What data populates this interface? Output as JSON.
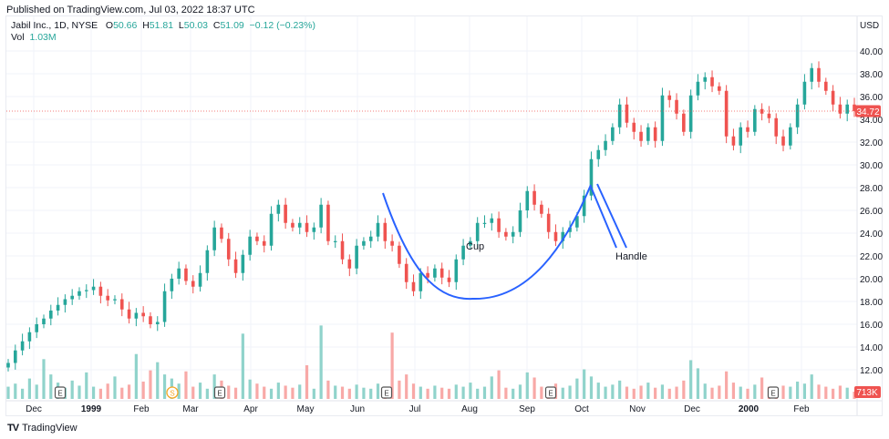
{
  "header": {
    "published": "Published on TradingView.com, Jul 03, 2022 18:37 UTC"
  },
  "legend": {
    "symbol": "Jabil Inc., 1D, NYSE",
    "o_label": "O",
    "o": "50.66",
    "h_label": "H",
    "h": "51.81",
    "l_label": "L",
    "l": "50.03",
    "c_label": "C",
    "c": "51.09",
    "change": "−0.12 (−0.23%)",
    "vol_label": "Vol",
    "vol": "1.03M"
  },
  "footer": {
    "brand": "TradingView"
  },
  "colors": {
    "up": "#26a69a",
    "down": "#ef5350",
    "cup_line": "#2962ff"
  },
  "chart_data": {
    "type": "candlestick",
    "currency": "USD",
    "ylim": [
      10.5,
      41.5
    ],
    "y_ticks": [
      "40.00",
      "38.00",
      "36.00",
      "34.00",
      "32.00",
      "30.00",
      "28.00",
      "26.00",
      "24.00",
      "22.00",
      "20.00",
      "18.00",
      "16.00",
      "14.00",
      "12.00"
    ],
    "x_ticks": [
      "Dec",
      "1999",
      "Feb",
      "Mar",
      "Apr",
      "May",
      "Jun",
      "Jul",
      "Aug",
      "Sep",
      "Oct",
      "Nov",
      "Dec",
      "2000",
      "Feb"
    ],
    "last_price": "34.72",
    "last_volume": "713K",
    "closes": [
      12.6,
      13.7,
      14.5,
      15.3,
      16.0,
      16.5,
      17.2,
      17.7,
      18.2,
      18.5,
      18.9,
      19.0,
      19.3,
      18.5,
      18.1,
      18.2,
      17.3,
      16.5,
      17.0,
      16.7,
      16.0,
      16.2,
      18.9,
      20.0,
      20.9,
      19.8,
      19.3,
      20.5,
      22.5,
      24.5,
      23.5,
      21.7,
      20.5,
      22.1,
      23.7,
      23.3,
      22.9,
      25.7,
      26.5,
      24.9,
      24.5,
      24.9,
      24.1,
      24.5,
      26.5,
      23.3,
      23.3,
      21.7,
      20.9,
      22.9,
      23.3,
      23.7,
      24.9,
      23.3,
      22.9,
      21.3,
      19.7,
      18.9,
      20.5,
      20.1,
      20.9,
      20.1,
      19.7,
      21.7,
      22.9,
      23.3,
      24.9,
      24.9,
      25.3,
      24.1,
      23.7,
      24.1,
      26.0,
      27.7,
      26.5,
      25.7,
      24.1,
      23.3,
      24.1,
      24.5,
      25.5,
      27.3,
      30.5,
      31.3,
      32.1,
      33.3,
      35.3,
      33.7,
      32.9,
      32.1,
      33.3,
      32.1,
      36.1,
      35.7,
      34.5,
      32.9,
      36.1,
      37.3,
      37.7,
      36.9,
      36.5,
      32.5,
      31.7,
      33.3,
      32.9,
      34.9,
      34.5,
      34.1,
      32.5,
      31.7,
      33.3,
      35.3,
      37.3,
      38.5,
      37.3,
      36.5,
      35.3,
      34.5,
      35.3,
      34.72
    ],
    "volumes_millions": [
      1.2,
      1.5,
      1.0,
      2.0,
      1.4,
      3.9,
      2.4,
      1.6,
      1.1,
      1.8,
      1.3,
      2.6,
      1.2,
      1.0,
      1.5,
      2.2,
      1.1,
      1.4,
      4.4,
      1.7,
      2.8,
      3.6,
      2.4,
      2.0,
      1.5,
      2.7,
      1.2,
      1.6,
      1.0,
      2.4,
      1.8,
      1.3,
      1.1,
      6.4,
      1.9,
      1.5,
      1.2,
      1.0,
      1.6,
      1.3,
      1.1,
      1.4,
      3.3,
      1.0,
      7.2,
      1.8,
      1.3,
      1.2,
      1.0,
      1.4,
      1.1,
      1.0,
      1.5,
      1.2,
      6.5,
      1.8,
      2.4,
      1.5,
      1.2,
      1.0,
      1.3,
      1.1,
      1.0,
      1.4,
      1.2,
      1.6,
      1.0,
      1.2,
      2.2,
      2.8,
      1.1,
      1.0,
      1.4,
      2.6,
      2.1,
      1.2,
      1.0,
      1.5,
      1.1,
      1.3,
      2.0,
      2.9,
      2.2,
      1.6,
      1.2,
      1.4,
      1.8,
      1.2,
      1.0,
      1.3,
      1.6,
      1.1,
      1.4,
      1.0,
      1.2,
      1.8,
      3.8,
      3.0,
      1.5,
      1.1,
      1.3,
      2.7,
      1.6,
      1.2,
      1.0,
      1.4,
      2.1,
      1.2,
      1.0,
      1.3,
      1.2,
      1.7,
      1.5,
      2.4,
      1.4,
      1.2,
      1.0,
      1.3,
      1.1,
      0.713
    ],
    "events": [
      {
        "label": "E"
      },
      {
        "label": "S"
      },
      {
        "label": "E"
      },
      {
        "label": "E"
      },
      {
        "label": "E"
      },
      {
        "label": "E"
      }
    ],
    "annotations": {
      "cup": "Cup",
      "handle": "Handle"
    }
  }
}
